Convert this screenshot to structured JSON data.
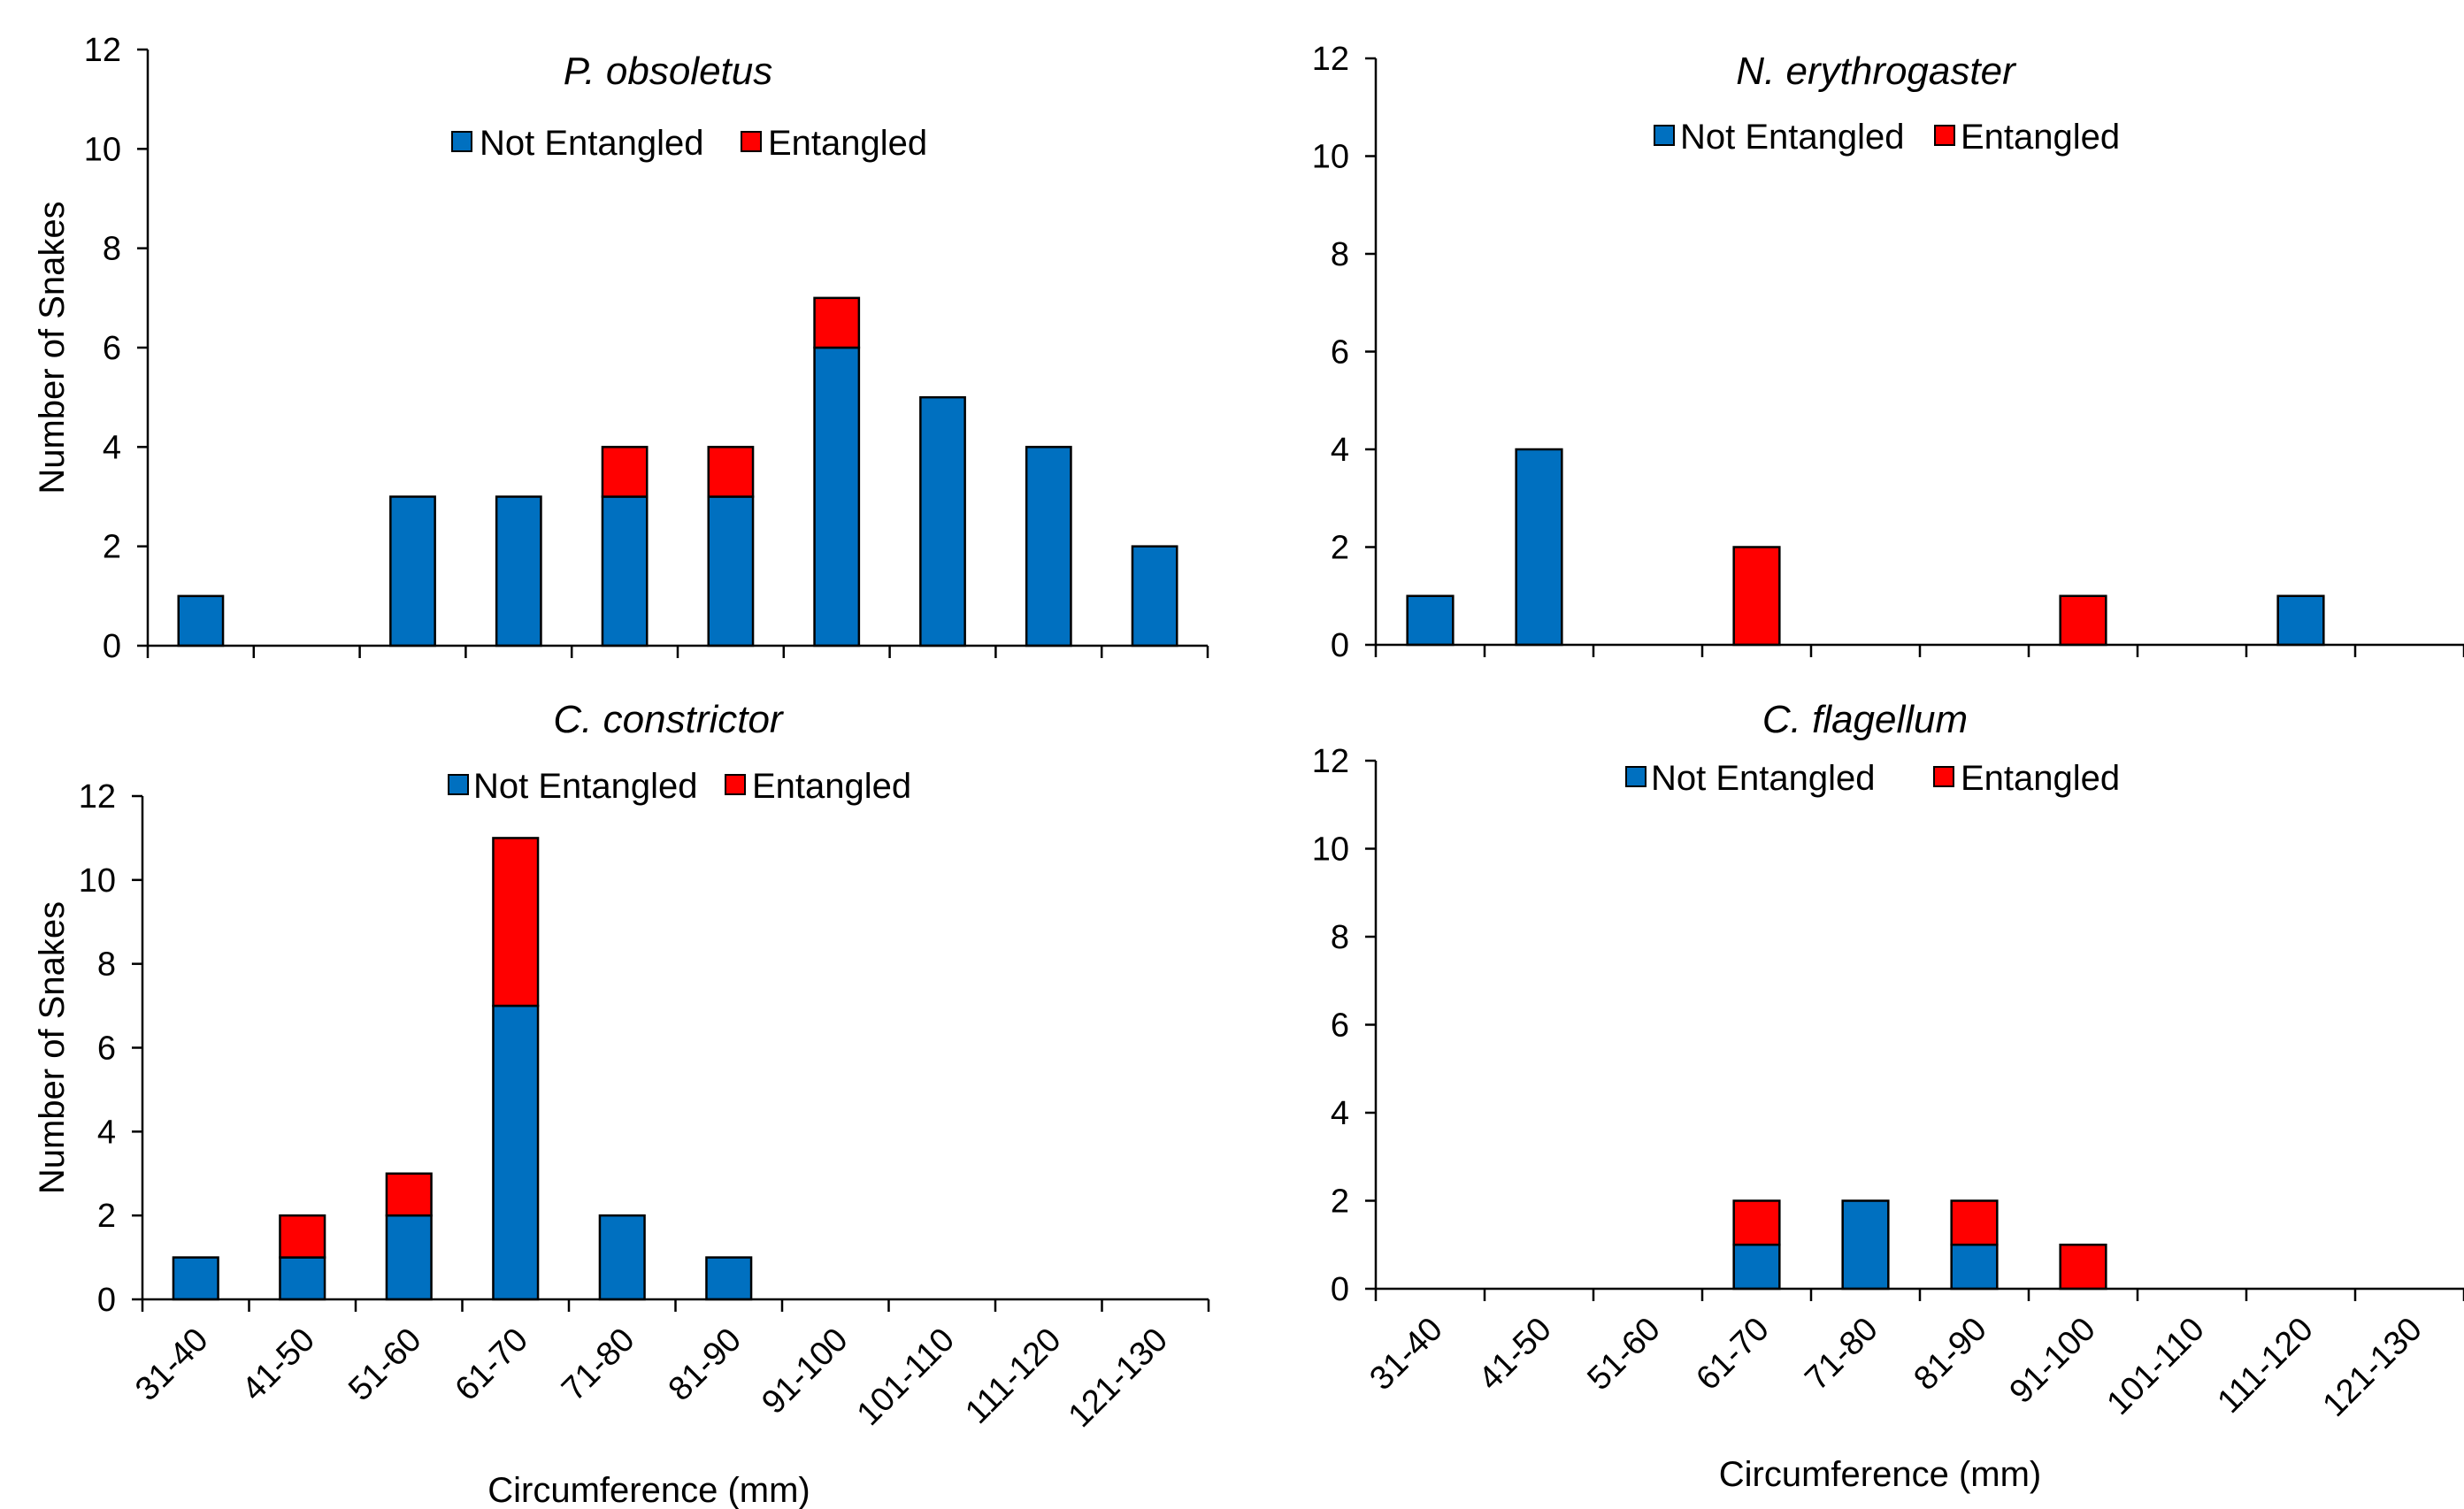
{
  "colors": {
    "not_entangled": "#0070C0",
    "entangled": "#FF0000"
  },
  "chart_data": [
    {
      "type": "bar",
      "stacked": true,
      "title": "P. obsoletus",
      "categories": [
        "31-40",
        "41-50",
        "51-60",
        "61-70",
        "71-80",
        "81-90",
        "91-100",
        "101-110",
        "111-120",
        "121-130"
      ],
      "series": [
        {
          "name": "Not Entangled",
          "values": [
            1,
            0,
            3,
            3,
            3,
            3,
            6,
            5,
            4,
            2
          ]
        },
        {
          "name": "Entangled",
          "values": [
            0,
            0,
            0,
            0,
            1,
            1,
            1,
            0,
            0,
            0
          ]
        }
      ],
      "ylabel": "Number of Snakes",
      "xlabel": "",
      "ylim": [
        0,
        12
      ],
      "yticks": [
        "0",
        "2",
        "4",
        "6",
        "8",
        "10",
        "12"
      ],
      "show_x_tick_labels": false,
      "legend": "top-center"
    },
    {
      "type": "bar",
      "stacked": true,
      "title": "N. erythrogaster",
      "categories": [
        "31-40",
        "41-50",
        "51-60",
        "61-70",
        "71-80",
        "81-90",
        "91-100",
        "101-110",
        "111-120",
        "121-130"
      ],
      "series": [
        {
          "name": "Not Entangled",
          "values": [
            1,
            4,
            0,
            0,
            0,
            0,
            0,
            0,
            1,
            0
          ]
        },
        {
          "name": "Entangled",
          "values": [
            0,
            0,
            0,
            2,
            0,
            0,
            1,
            0,
            0,
            0
          ]
        }
      ],
      "ylabel": "",
      "xlabel": "",
      "ylim": [
        0,
        12
      ],
      "yticks": [
        "0",
        "2",
        "4",
        "6",
        "8",
        "10",
        "12"
      ],
      "show_x_tick_labels": false,
      "legend": "top-center"
    },
    {
      "type": "bar",
      "stacked": true,
      "title": "C. constrictor",
      "categories": [
        "31-40",
        "41-50",
        "51-60",
        "61-70",
        "71-80",
        "81-90",
        "91-100",
        "101-110",
        "111-120",
        "121-130"
      ],
      "series": [
        {
          "name": "Not Entangled",
          "values": [
            1,
            1,
            2,
            7,
            2,
            1,
            0,
            0,
            0,
            0
          ]
        },
        {
          "name": "Entangled",
          "values": [
            0,
            1,
            1,
            4,
            0,
            0,
            0,
            0,
            0,
            0
          ]
        }
      ],
      "ylabel": "Number of Snakes",
      "xlabel": "Circumference (mm)",
      "ylim": [
        0,
        12
      ],
      "yticks": [
        "0",
        "2",
        "4",
        "6",
        "8",
        "10",
        "12"
      ],
      "show_x_tick_labels": true,
      "legend": "top-center"
    },
    {
      "type": "bar",
      "stacked": true,
      "title": "C. flagellum",
      "categories": [
        "31-40",
        "41-50",
        "51-60",
        "61-70",
        "71-80",
        "81-90",
        "91-100",
        "101-110",
        "111-120",
        "121-130"
      ],
      "series": [
        {
          "name": "Not Entangled",
          "values": [
            0,
            0,
            0,
            1,
            2,
            1,
            0,
            0,
            0,
            0
          ]
        },
        {
          "name": "Entangled",
          "values": [
            0,
            0,
            0,
            1,
            0,
            1,
            1,
            0,
            0,
            0
          ]
        }
      ],
      "ylabel": "",
      "xlabel": "Circumference (mm)",
      "ylim": [
        0,
        12
      ],
      "yticks": [
        "0",
        "2",
        "4",
        "6",
        "8",
        "10",
        "12"
      ],
      "show_x_tick_labels": true,
      "legend": "top-center"
    }
  ]
}
